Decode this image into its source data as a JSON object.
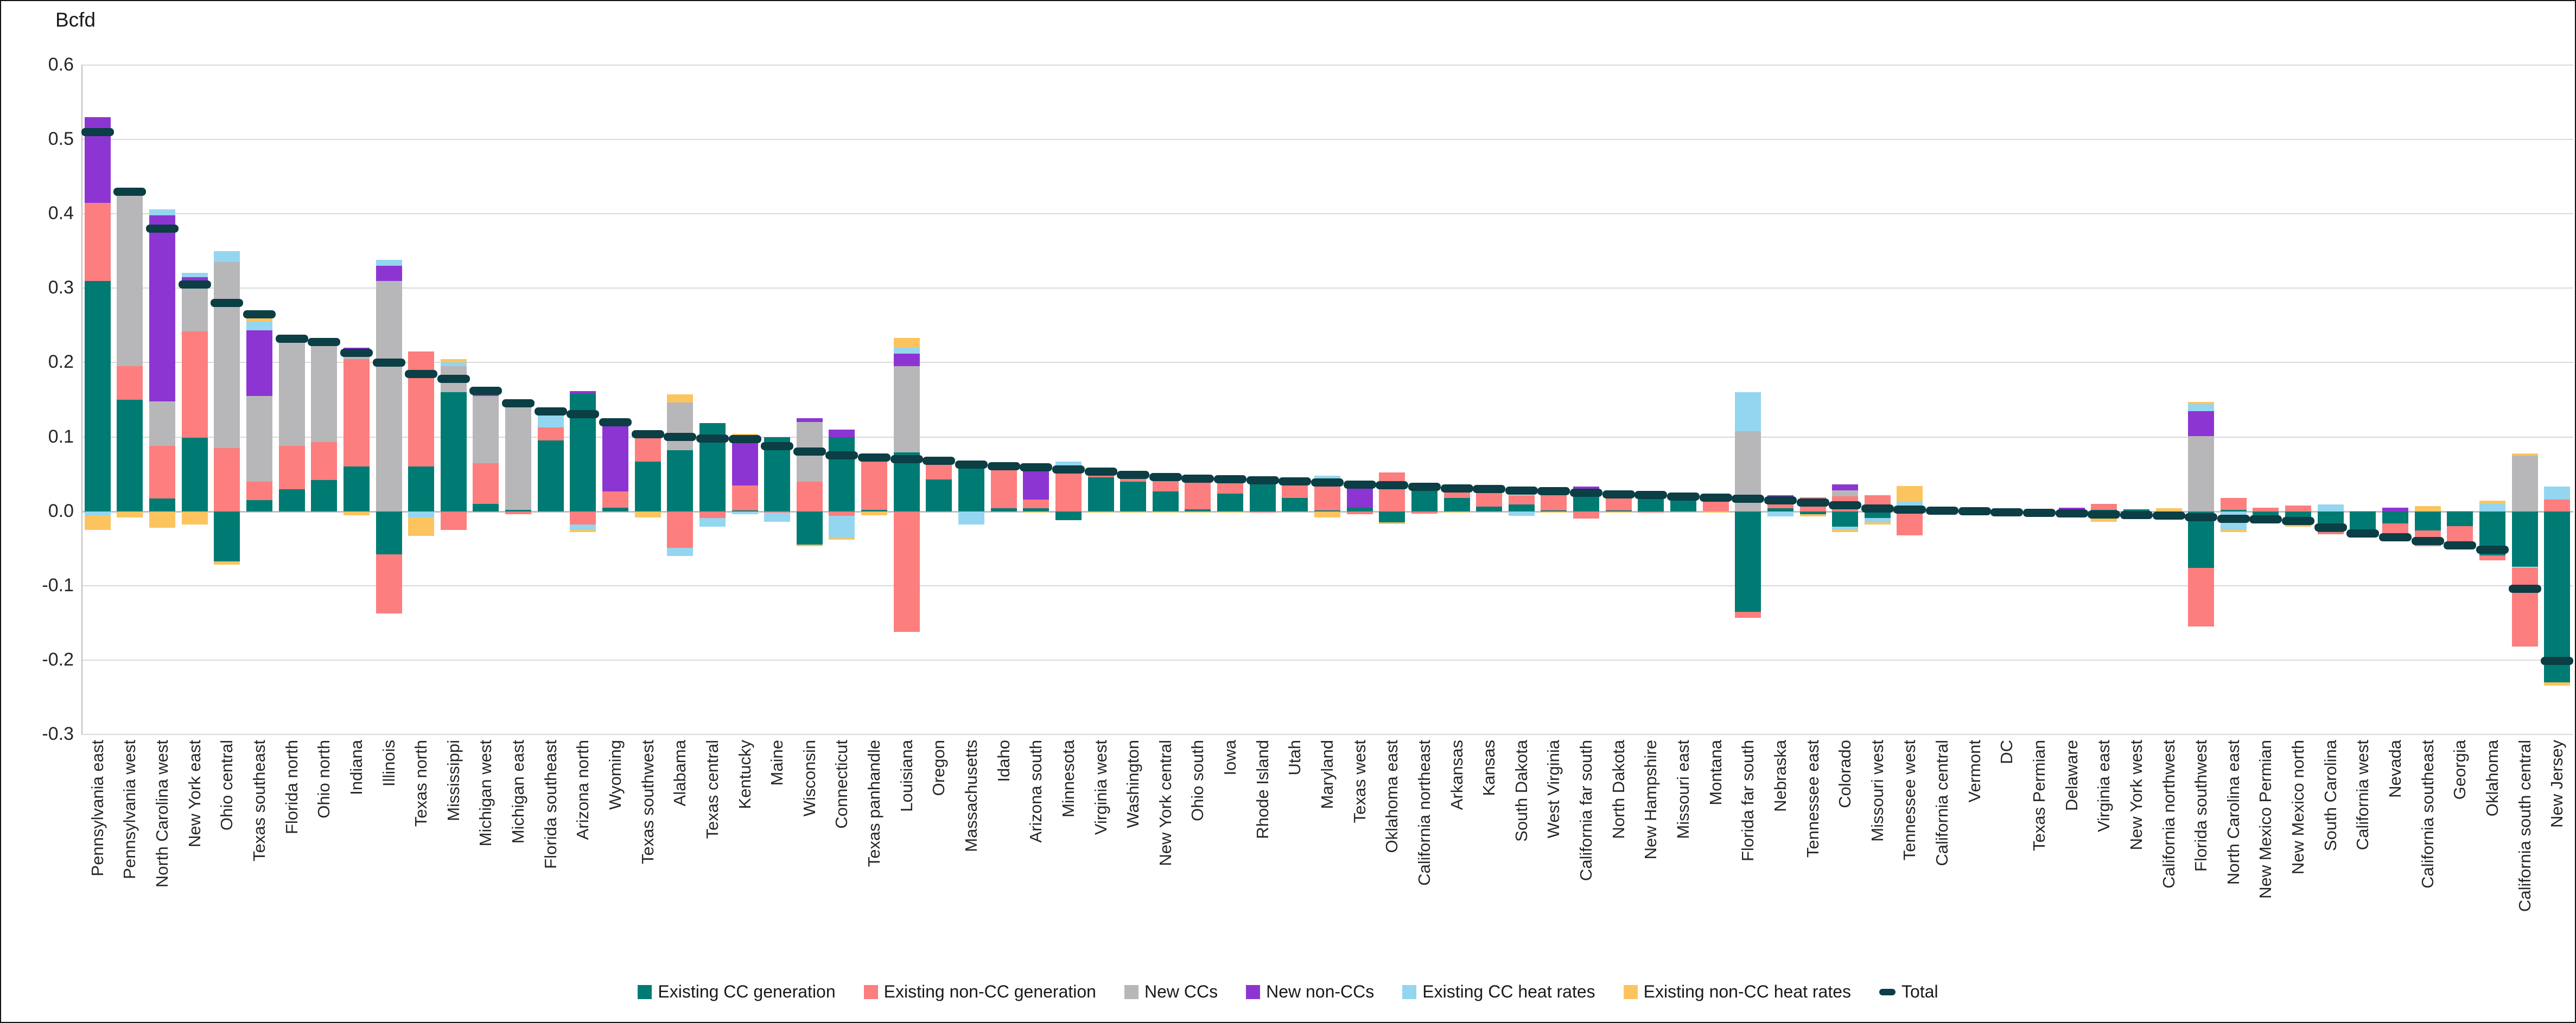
{
  "chart_data": {
    "type": "bar",
    "stacked": true,
    "title": "Bcfd",
    "ylabel": "Bcfd",
    "xlabel": "",
    "ylim": [
      -0.3,
      0.6
    ],
    "grid": true,
    "legend_position": "bottom",
    "yticks": [
      "0.6",
      "0.5",
      "0.4",
      "0.3",
      "0.2",
      "0.1",
      "0.0",
      "-0.1",
      "-0.2",
      "-0.3"
    ],
    "ytick_values": [
      0.6,
      0.5,
      0.4,
      0.3,
      0.2,
      0.1,
      0.0,
      -0.1,
      -0.2,
      -0.3
    ],
    "colors": {
      "existing_cc_generation": "#007B73",
      "existing_non_cc_generation": "#FC7E7E",
      "new_ccs": "#B7B7BA",
      "new_non_ccs": "#8D35D2",
      "existing_cc_heat_rates": "#94D6EF",
      "existing_non_cc_heat_rates": "#FCC45F",
      "total": "#0B3E45",
      "gridline": "#D9D9D9",
      "zero_line": "#BFBFBF"
    },
    "categories": [
      "Pennsylvania east",
      "Pennsylvania west",
      "North Carolina west",
      "New York east",
      "Ohio central",
      "Texas southeast",
      "Florida north",
      "Ohio north",
      "Indiana",
      "Illinois",
      "Texas north",
      "Mississippi",
      "Michigan west",
      "Michigan east",
      "Florida southeast",
      "Arizona north",
      "Wyoming",
      "Texas southwest",
      "Alabama",
      "Texas central",
      "Kentucky",
      "Maine",
      "Wisconsin",
      "Connecticut",
      "Texas panhandle",
      "Louisiana",
      "Oregon",
      "Massachusetts",
      "Idaho",
      "Arizona south",
      "Minnesota",
      "Virginia west",
      "Washington",
      "New York central",
      "Ohio south",
      "Iowa",
      "Rhode Island",
      "Utah",
      "Maryland",
      "Texas west",
      "Oklahoma east",
      "California northeast",
      "Arkansas",
      "Kansas",
      "South Dakota",
      "West Virginia",
      "California far south",
      "North Dakota",
      "New Hampshire",
      "Missouri east",
      "Montana",
      "Florida far south",
      "Nebraska",
      "Tennessee east",
      "Colorado",
      "Missouri west",
      "Tennessee west",
      "California central",
      "Vermont",
      "DC",
      "Texas Permian",
      "Delaware",
      "Virginia east",
      "New York west",
      "California northwest",
      "Florida southwest",
      "North Carolina east",
      "New Mexico Permian",
      "New Mexico north",
      "South Carolina",
      "California west",
      "Nevada",
      "California southeast",
      "Georgia",
      "Oklahoma",
      "California south central",
      "New Jersey"
    ],
    "series": [
      {
        "name": "Existing CC generation",
        "color_key": "existing_cc_generation",
        "values": [
          0.31,
          0.15,
          0.017,
          0.099,
          -0.067,
          0.015,
          0.03,
          0.042,
          0.06,
          -0.058,
          0.06,
          0.16,
          0.01,
          0.002,
          0.095,
          0.158,
          0.005,
          0.067,
          0.082,
          0.119,
          0.001,
          0.1,
          -0.045,
          0.1,
          0.002,
          0.079,
          0.043,
          0.065,
          0.004,
          0.004,
          -0.012,
          0.046,
          0.04,
          0.027,
          0.003,
          0.024,
          0.043,
          0.018,
          0.001,
          0.005,
          -0.015,
          0.036,
          0.018,
          0.006,
          0.009,
          0.001,
          0.028,
          0.001,
          0.024,
          0.014,
          0.0,
          -0.135,
          0.004,
          -0.004,
          -0.021,
          -0.009,
          0.007,
          0.005,
          0.003,
          0.002,
          0.002,
          0.002,
          0.002,
          0.003,
          -0.01,
          -0.076,
          0.002,
          -0.016,
          -0.015,
          -0.028,
          -0.028,
          -0.016,
          -0.026,
          -0.02,
          -0.059,
          -0.075,
          -0.23
        ]
      },
      {
        "name": "Existing non-CC generation",
        "color_key": "existing_non_cc_generation",
        "values": [
          0.105,
          0.045,
          0.071,
          0.143,
          0.085,
          0.025,
          0.058,
          0.051,
          0.145,
          -0.079,
          0.155,
          -0.025,
          0.055,
          -0.004,
          0.018,
          -0.018,
          0.022,
          0.037,
          -0.049,
          -0.009,
          0.034,
          -0.002,
          0.04,
          -0.006,
          0.075,
          -0.162,
          0.027,
          0.0,
          0.06,
          0.012,
          0.058,
          0.009,
          0.009,
          0.019,
          0.043,
          0.021,
          -0.001,
          0.02,
          0.04,
          -0.004,
          0.052,
          -0.003,
          0.014,
          0.025,
          0.013,
          0.029,
          -0.01,
          0.025,
          -0.002,
          0.007,
          0.02,
          -0.008,
          0.012,
          0.019,
          0.02,
          0.022,
          -0.032,
          0.0,
          0.0,
          0.0,
          -0.004,
          0.0,
          0.008,
          -0.008,
          0.0,
          -0.079,
          0.016,
          0.005,
          0.008,
          -0.003,
          -0.003,
          -0.02,
          -0.021,
          -0.022,
          -0.007,
          -0.107,
          0.016
        ]
      },
      {
        "name": "New CCs",
        "color_key": "new_ccs",
        "values": [
          0.0,
          0.23,
          0.06,
          0.067,
          0.25,
          0.115,
          0.14,
          0.135,
          0.005,
          0.31,
          0.0,
          0.035,
          0.09,
          0.14,
          0.0,
          0.0,
          0.0,
          0.0,
          0.064,
          0.0,
          0.0,
          0.0,
          0.08,
          0.0,
          0.0,
          0.116,
          0.0,
          0.0,
          0.0,
          0.0,
          0.0,
          0.0,
          0.0,
          0.0,
          0.0,
          0.0,
          0.0,
          0.002,
          0.0,
          0.0,
          0.0,
          0.0,
          0.0,
          0.0,
          0.0,
          0.0,
          0.0,
          0.0,
          0.0,
          0.0,
          0.0,
          0.108,
          0.0,
          0.0,
          0.008,
          0.0,
          0.0,
          0.0,
          0.0,
          0.0,
          0.0,
          0.0,
          0.0,
          0.0,
          0.0,
          0.101,
          0.0,
          0.0,
          0.0,
          0.0,
          0.0,
          0.0,
          0.0,
          0.0,
          0.0,
          0.075,
          0.0
        ]
      },
      {
        "name": "New non-CCs",
        "color_key": "new_non_ccs",
        "values": [
          0.115,
          0.005,
          0.25,
          0.006,
          0.0,
          0.088,
          0.004,
          0.004,
          0.01,
          0.02,
          0.0,
          0.0,
          0.006,
          0.0,
          0.0,
          0.004,
          0.092,
          0.005,
          0.0,
          0.0,
          0.063,
          0.0,
          0.005,
          0.01,
          0.0,
          0.017,
          0.0,
          0.0,
          0.0,
          0.045,
          0.0,
          0.0,
          0.0,
          0.0,
          0.0,
          0.0,
          0.0,
          0.0,
          0.0,
          0.033,
          0.0,
          0.0,
          0.0,
          0.0,
          0.011,
          0.0,
          0.005,
          0.0,
          0.0,
          0.0,
          0.0,
          0.0,
          0.006,
          0.0,
          0.008,
          0.0,
          0.0,
          0.0,
          0.0,
          0.0,
          0.0,
          0.003,
          0.0,
          0.0,
          0.0,
          0.034,
          0.0,
          0.0,
          0.0,
          0.0,
          0.0,
          0.005,
          0.0,
          0.0,
          0.0,
          0.0,
          0.0
        ]
      },
      {
        "name": "Existing CC heat rates",
        "color_key": "existing_cc_heat_rates",
        "values": [
          -0.005,
          0.0,
          0.008,
          0.006,
          0.015,
          0.012,
          0.0,
          0.0,
          0.0,
          0.008,
          -0.008,
          0.005,
          0.0,
          0.0,
          0.02,
          -0.007,
          0.0,
          0.0,
          -0.011,
          -0.012,
          -0.004,
          -0.012,
          0.0,
          -0.03,
          0.0,
          0.008,
          0.0,
          -0.018,
          0.0,
          0.0,
          0.009,
          0.0,
          0.0,
          0.0,
          0.0,
          0.0,
          0.0,
          0.0,
          0.007,
          0.0,
          0.0,
          0.0,
          0.0,
          0.0,
          -0.006,
          0.0,
          0.0,
          0.0,
          0.0,
          0.0,
          0.0,
          0.052,
          -0.007,
          0.0,
          -0.004,
          -0.006,
          0.006,
          0.0,
          0.0,
          0.0,
          0.0,
          -0.006,
          0.0,
          0.0,
          0.0,
          0.009,
          -0.025,
          0.0,
          0.0,
          0.009,
          0.0,
          -0.004,
          0.0,
          -0.004,
          0.01,
          0.0,
          0.017
        ]
      },
      {
        "name": "Existing non-CC heat rates",
        "color_key": "existing_non_cc_heat_rates",
        "values": [
          -0.02,
          -0.008,
          -0.022,
          -0.018,
          -0.005,
          0.012,
          0.0,
          0.0,
          -0.005,
          0.0,
          -0.025,
          0.005,
          0.0,
          0.005,
          0.0,
          -0.003,
          0.0,
          -0.008,
          0.011,
          0.0,
          0.006,
          0.0,
          -0.002,
          -0.002,
          -0.005,
          0.013,
          0.0,
          0.002,
          0.0,
          -0.002,
          0.0,
          -0.002,
          -0.002,
          -0.002,
          -0.002,
          -0.002,
          0.0,
          0.0,
          -0.008,
          0.0,
          -0.002,
          0.0,
          -0.002,
          0.0,
          0.0,
          -0.002,
          0.0,
          -0.002,
          0.0,
          0.0,
          -0.002,
          0.0,
          0.0,
          -0.003,
          -0.003,
          -0.003,
          0.021,
          -0.004,
          -0.003,
          -0.003,
          0.0,
          -0.002,
          -0.014,
          0.0,
          0.004,
          0.003,
          -0.003,
          0.0,
          -0.006,
          0.0,
          0.0,
          0.0,
          0.007,
          0.0,
          0.004,
          0.003,
          -0.004
        ]
      }
    ],
    "total_series": {
      "name": "Total",
      "color_key": "total",
      "values": [
        0.51,
        0.43,
        0.38,
        0.305,
        0.28,
        0.265,
        0.232,
        0.228,
        0.213,
        0.2,
        0.185,
        0.178,
        0.162,
        0.145,
        0.134,
        0.131,
        0.12,
        0.104,
        0.1,
        0.098,
        0.097,
        0.088,
        0.08,
        0.075,
        0.072,
        0.07,
        0.068,
        0.063,
        0.061,
        0.059,
        0.056,
        0.053,
        0.049,
        0.046,
        0.044,
        0.043,
        0.042,
        0.04,
        0.039,
        0.036,
        0.035,
        0.033,
        0.031,
        0.03,
        0.028,
        0.027,
        0.025,
        0.023,
        0.022,
        0.02,
        0.018,
        0.017,
        0.015,
        0.012,
        0.008,
        0.004,
        0.002,
        0.001,
        0.0,
        -0.001,
        -0.002,
        -0.003,
        -0.004,
        -0.005,
        -0.006,
        -0.008,
        -0.01,
        -0.011,
        -0.013,
        -0.022,
        -0.03,
        -0.035,
        -0.04,
        -0.046,
        -0.052,
        -0.104,
        -0.201
      ]
    }
  },
  "legend": {
    "items": [
      {
        "label": "Existing CC generation",
        "color_key": "existing_cc_generation",
        "shape": "square"
      },
      {
        "label": "Existing non-CC generation",
        "color_key": "existing_non_cc_generation",
        "shape": "square"
      },
      {
        "label": "New CCs",
        "color_key": "new_ccs",
        "shape": "square"
      },
      {
        "label": "New non-CCs",
        "color_key": "new_non_ccs",
        "shape": "square"
      },
      {
        "label": "Existing CC heat rates",
        "color_key": "existing_cc_heat_rates",
        "shape": "square"
      },
      {
        "label": "Existing non-CC heat rates",
        "color_key": "existing_non_cc_heat_rates",
        "shape": "square"
      },
      {
        "label": "Total",
        "color_key": "total",
        "shape": "dash"
      }
    ]
  },
  "axis": {
    "title": "Bcfd"
  }
}
